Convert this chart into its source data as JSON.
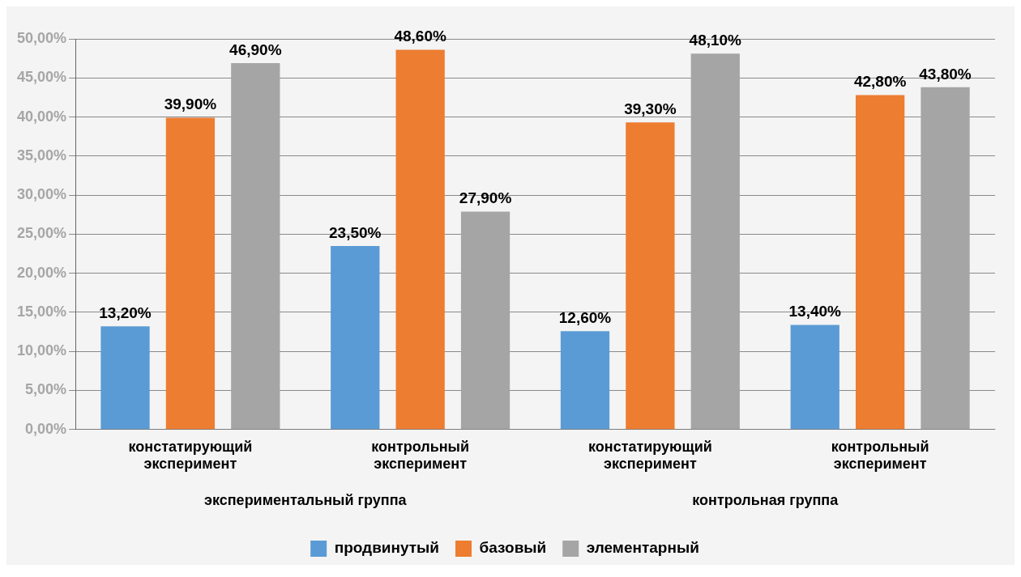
{
  "chart_data": {
    "type": "bar",
    "categories": [
      "констатирующий эксперимент",
      "контрольный эксперимент",
      "констатирующий эксперимент",
      "контрольный эксперимент"
    ],
    "series": [
      {
        "name": "продвинутый",
        "color": "#5b9bd5",
        "values": [
          13.2,
          23.5,
          12.6,
          13.4
        ],
        "value_labels": [
          "13,20%",
          "23,50%",
          "12,60%",
          "13,40%"
        ]
      },
      {
        "name": "базовый",
        "color": "#ed7d31",
        "values": [
          39.9,
          48.6,
          39.3,
          42.8
        ],
        "value_labels": [
          "39,90%",
          "48,60%",
          "39,30%",
          "42,80%"
        ]
      },
      {
        "name": "элементарный",
        "color": "#a5a5a5",
        "values": [
          46.9,
          27.9,
          48.1,
          43.8
        ],
        "value_labels": [
          "46,90%",
          "27,90%",
          "48,10%",
          "43,80%"
        ]
      }
    ],
    "ylim": [
      0,
      50
    ],
    "yticks": [
      {
        "value": 0,
        "label": "0,00%"
      },
      {
        "value": 5,
        "label": "5,00%"
      },
      {
        "value": 10,
        "label": "10,00%"
      },
      {
        "value": 15,
        "label": "15,00%"
      },
      {
        "value": 20,
        "label": "20,00%"
      },
      {
        "value": 25,
        "label": "25,00%"
      },
      {
        "value": 30,
        "label": "30,00%"
      },
      {
        "value": 35,
        "label": "35,00%"
      },
      {
        "value": 40,
        "label": "40,00%"
      },
      {
        "value": 45,
        "label": "45,00%"
      },
      {
        "value": 50,
        "label": "50,00%"
      }
    ],
    "annotations": [
      "экспериментальный группа",
      "контрольная группа"
    ],
    "grid": "y",
    "legend": "bottom"
  }
}
